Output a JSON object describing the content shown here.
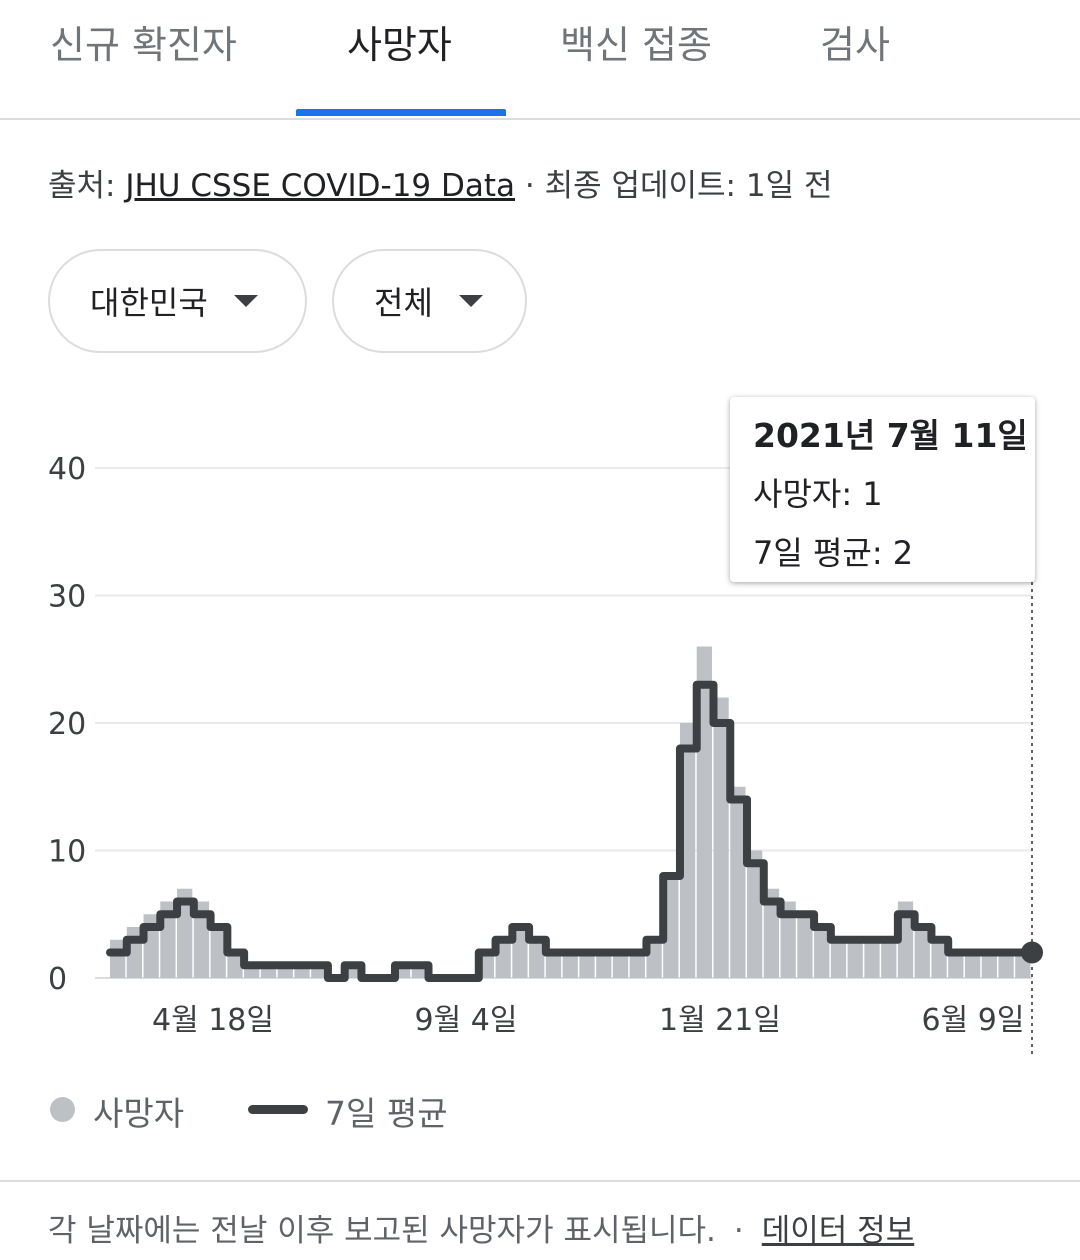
{
  "tabs": [
    {
      "label": "신규 확진자"
    },
    {
      "label": "사망자"
    },
    {
      "label": "백신 접종"
    },
    {
      "label": "검사"
    }
  ],
  "active_tab": 1,
  "source": {
    "prefix": "출처: ",
    "link": "JHU CSSE COVID-19 Data",
    "updated": " · 최종 업데이트: 1일 전"
  },
  "filters": {
    "region": "대한민국",
    "scope": "전체"
  },
  "tooltip": {
    "date": "2021년 7월 11일",
    "deaths": "사망자: 1",
    "avg": "7일 평균: 2"
  },
  "legend": {
    "bars": "사망자",
    "line": "7일 평균"
  },
  "footer": {
    "note": "각 날짜에는 전날 이후 보고된 사망자가 표시됩니다.",
    "sep": "·",
    "link": "데이터 정보"
  },
  "colors": {
    "bar": "#bdc1c6",
    "line": "#3c4043",
    "accent": "#1a73e8"
  },
  "chart_data": {
    "type": "bar",
    "series": [
      {
        "name": "사망자",
        "type": "bar",
        "values_by_week": [
          3,
          4,
          5,
          6,
          7,
          6,
          4,
          2,
          1,
          1,
          1,
          1,
          1,
          0,
          1,
          0,
          0,
          1,
          1,
          0,
          0,
          0,
          2,
          3,
          4,
          3,
          2,
          2,
          2,
          2,
          2,
          2,
          3,
          8,
          20,
          26,
          22,
          15,
          10,
          7,
          6,
          5,
          4,
          3,
          3,
          3,
          3,
          6,
          4,
          3,
          2,
          2,
          2,
          2,
          2
        ]
      },
      {
        "name": "7일 평균",
        "type": "line",
        "values_by_week": [
          2,
          3,
          4,
          5,
          6,
          5,
          4,
          2,
          1,
          1,
          1,
          1,
          1,
          0,
          1,
          0,
          0,
          1,
          1,
          0,
          0,
          0,
          2,
          3,
          4,
          3,
          2,
          2,
          2,
          2,
          2,
          2,
          3,
          8,
          18,
          23,
          20,
          14,
          9,
          6,
          5,
          5,
          4,
          3,
          3,
          3,
          3,
          5,
          4,
          3,
          2,
          2,
          2,
          2,
          2
        ]
      }
    ],
    "x_ticks": [
      "4월 18일",
      "9월 4일",
      "1월 21일",
      "6월 9일"
    ],
    "y_ticks": [
      0,
      10,
      20,
      30,
      40
    ],
    "ylim": [
      0,
      40
    ],
    "xlabel": "",
    "ylabel": "",
    "grid": true,
    "legend_position": "bottom-left",
    "highlight": {
      "label": "2021년 7월 11일",
      "deaths": 1,
      "avg": 2
    }
  }
}
